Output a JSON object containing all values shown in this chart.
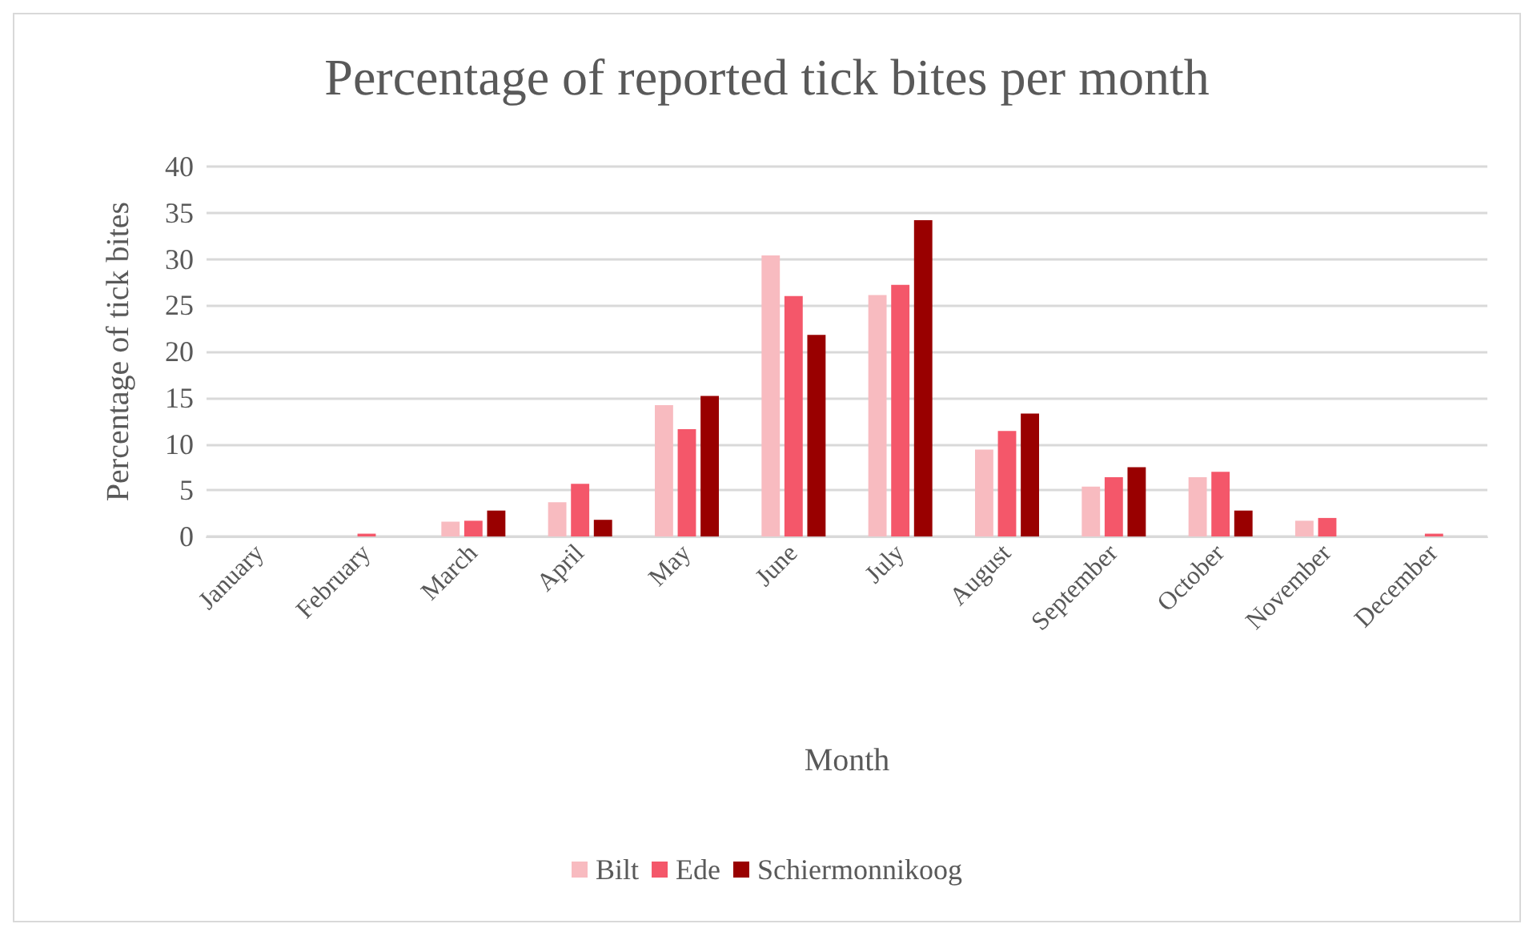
{
  "chart_data": {
    "type": "bar",
    "title": "Percentage of reported tick bites per month",
    "xlabel": "Month",
    "ylabel": "Percentage of tick bites",
    "categories": [
      "January",
      "February",
      "March",
      "April",
      "May",
      "June",
      "July",
      "August",
      "September",
      "October",
      "November",
      "December"
    ],
    "series": [
      {
        "name": "Bilt",
        "color": "#f8bbc0",
        "values": [
          null,
          null,
          1.6,
          3.7,
          14.2,
          30.4,
          26.1,
          9.4,
          5.4,
          6.4,
          1.7,
          null
        ]
      },
      {
        "name": "Ede",
        "color": "#f4576a",
        "values": [
          0,
          0.3,
          1.7,
          5.7,
          11.6,
          26.0,
          27.2,
          11.4,
          6.4,
          7.0,
          2.0,
          0.3
        ]
      },
      {
        "name": "Schiermonnikoog",
        "color": "#990000",
        "values": [
          0,
          0,
          2.8,
          1.8,
          15.2,
          21.8,
          34.2,
          13.3,
          7.5,
          2.8,
          0,
          0
        ]
      }
    ],
    "ylim": [
      0,
      40
    ],
    "yticks": [
      0,
      5,
      10,
      15,
      20,
      25,
      30,
      35,
      40
    ],
    "grid": "y",
    "legend": "bottom"
  }
}
